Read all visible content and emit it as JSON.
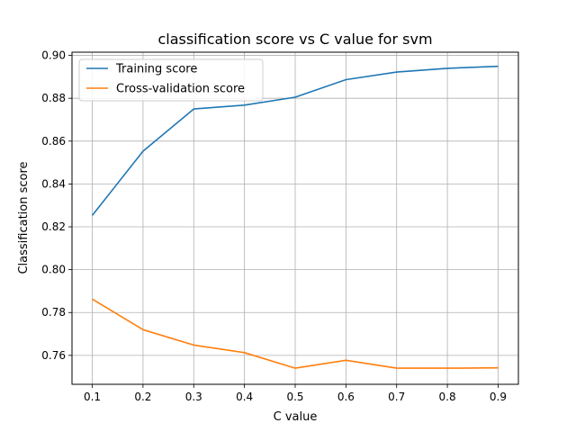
{
  "chart_data": {
    "type": "line",
    "title": "classification score vs C value for svm",
    "xlabel": "C value",
    "ylabel": "Classification score",
    "x": [
      0.1,
      0.2,
      0.3,
      0.4,
      0.5,
      0.6,
      0.7,
      0.8,
      0.9
    ],
    "xticks": [
      "0.1",
      "0.2",
      "0.3",
      "0.4",
      "0.5",
      "0.6",
      "0.7",
      "0.8",
      "0.9"
    ],
    "yticks": [
      "0.76",
      "0.78",
      "0.80",
      "0.82",
      "0.84",
      "0.86",
      "0.88",
      "0.90"
    ],
    "xlim": [
      0.06,
      0.94
    ],
    "ylim": [
      0.7465,
      0.9015
    ],
    "grid": true,
    "legend_position": "upper left",
    "series": [
      {
        "name": "Training score",
        "color": "#1f77b4",
        "values": [
          0.8253,
          0.8553,
          0.875,
          0.8768,
          0.8805,
          0.8887,
          0.8922,
          0.894,
          0.8949
        ]
      },
      {
        "name": "Cross-validation score",
        "color": "#ff7f0e",
        "values": [
          0.7863,
          0.772,
          0.7648,
          0.7613,
          0.754,
          0.7577,
          0.754,
          0.754,
          0.7542
        ]
      }
    ]
  }
}
